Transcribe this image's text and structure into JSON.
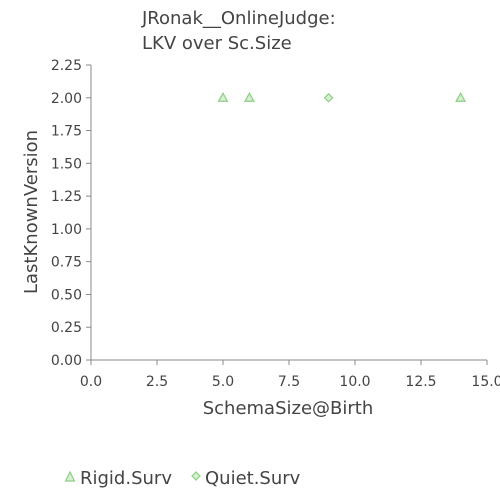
{
  "chart_data": {
    "type": "scatter",
    "title_lines": [
      "JRonak__OnlineJudge:",
      "LKV over Sc.Size"
    ],
    "xlabel": "SchemaSize@Birth",
    "ylabel": "LastKnownVersion",
    "xlim": [
      0,
      15
    ],
    "ylim": [
      0,
      2.25
    ],
    "x_ticks": [
      "0.0",
      "2.5",
      "5.0",
      "7.5",
      "10.0",
      "12.5",
      "15.0"
    ],
    "y_ticks": [
      "0.00",
      "0.25",
      "0.50",
      "0.75",
      "1.00",
      "1.25",
      "1.50",
      "1.75",
      "2.00",
      "2.25"
    ],
    "grid": false,
    "legend_position": "bottom",
    "series": [
      {
        "name": "Rigid.Surv",
        "marker": "triangle",
        "color": "#8fce86",
        "points": [
          {
            "x": 5,
            "y": 2
          },
          {
            "x": 6,
            "y": 2
          },
          {
            "x": 14,
            "y": 2
          }
        ]
      },
      {
        "name": "Quiet.Surv",
        "marker": "diamond",
        "color": "#8fce86",
        "points": [
          {
            "x": 9,
            "y": 2
          }
        ]
      }
    ]
  }
}
